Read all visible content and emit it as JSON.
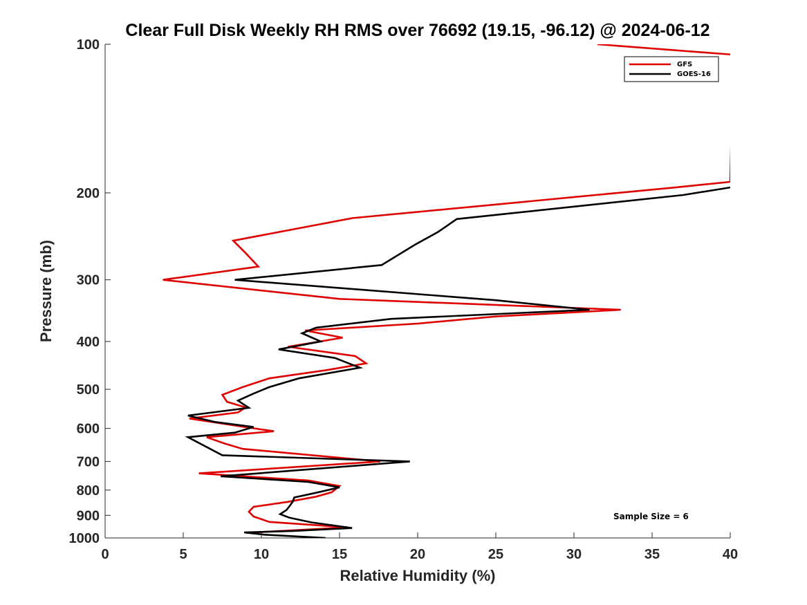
{
  "chart_data": {
    "type": "line",
    "title": "Clear Full Disk Weekly RH RMS over 76692 (19.15, -96.12) @ 2024-06-12",
    "xlabel": "Relative Humidity (%)",
    "ylabel": "Pressure (mb)",
    "xlim": [
      0,
      40
    ],
    "ylim": [
      100,
      1000
    ],
    "yscale": "log",
    "y_reversed": true,
    "x_ticks": [
      0,
      5,
      10,
      15,
      20,
      25,
      30,
      35,
      40
    ],
    "y_ticks": [
      100,
      200,
      300,
      400,
      500,
      600,
      700,
      800,
      900,
      1000
    ],
    "legend_position": "top-right",
    "annotation": "Sample Size = 6",
    "series": [
      {
        "name": "GFS",
        "color": "#e00000",
        "x": [
          31.5,
          40.2,
          40,
          36.5,
          15.8,
          8.2,
          9,
          9.8,
          3.7,
          15,
          33,
          25,
          20,
          12.8,
          15.2,
          11.7,
          16,
          16.7,
          14.2,
          10.5,
          8.8,
          7.5,
          7.8,
          9,
          8.5,
          5.4,
          8,
          10.8,
          6.5,
          7.6,
          8.8,
          17.6,
          6,
          13,
          15,
          14.5,
          13.5,
          11.7,
          9.5,
          9.2,
          9.5,
          10.5,
          15.5,
          9.5
        ],
        "y": [
          100,
          105,
          190,
          195,
          225,
          250,
          265,
          282,
          300,
          328,
          345,
          356,
          368,
          380,
          393,
          410,
          428,
          443,
          457,
          475,
          495,
          513,
          530,
          544,
          557,
          573,
          590,
          608,
          625,
          643,
          660,
          700,
          740,
          765,
          785,
          808,
          825,
          845,
          865,
          885,
          905,
          928,
          952,
          975
        ]
      },
      {
        "name": "GOES-16",
        "color": "#000000",
        "x": [
          40,
          37,
          22.5,
          21.3,
          19.8,
          17.7,
          8.3,
          25,
          31,
          18.3,
          13.5,
          12.6,
          13.8,
          11.1,
          14.7,
          16.3,
          12.4,
          10.5,
          9.5,
          8.5,
          9.2,
          5.3,
          7,
          9.5,
          8.3,
          5.3,
          7.5,
          19.5,
          7.4,
          13,
          15,
          13.5,
          12.1,
          12,
          11.8,
          11.6,
          11.2,
          11.8,
          13.2,
          15.8,
          12,
          8.9,
          10.2,
          14.1
        ],
        "y": [
          195,
          202,
          226,
          240,
          255,
          280,
          300,
          330,
          345,
          360,
          375,
          385,
          400,
          415,
          432,
          452,
          475,
          495,
          510,
          527,
          545,
          565,
          582,
          596,
          612,
          625,
          680,
          700,
          750,
          770,
          790,
          810,
          828,
          845,
          862,
          878,
          895,
          910,
          930,
          955,
          968,
          975,
          985,
          1000
        ]
      }
    ]
  }
}
